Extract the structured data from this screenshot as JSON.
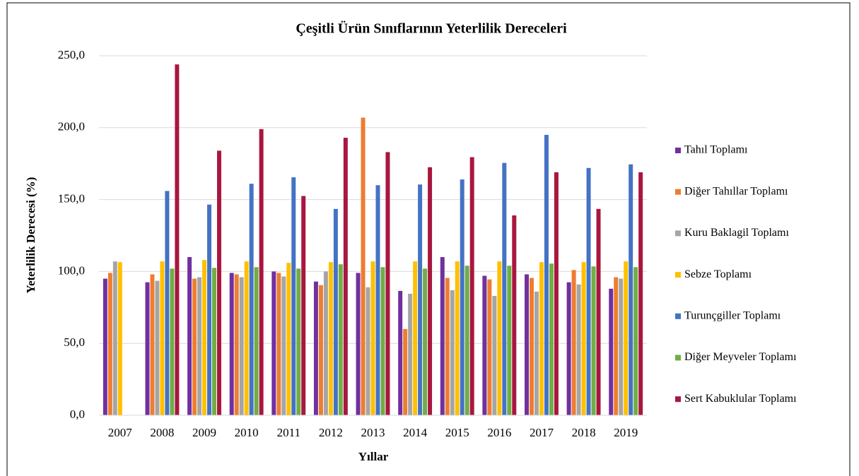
{
  "chart_data": {
    "type": "bar",
    "title": "Çeşitli Ürün Sınıflarının Yeterlilik Dereceleri",
    "xlabel": "Yıllar",
    "ylabel": "Yeterlilik Derecesi (%)",
    "categories": [
      "2007",
      "2008",
      "2009",
      "2010",
      "2011",
      "2012",
      "2013",
      "2014",
      "2015",
      "2016",
      "2017",
      "2018",
      "2019"
    ],
    "series": [
      {
        "name": "Tahıl Toplamı",
        "color": "#7030a0",
        "values": [
          95,
          92.5,
          110,
          99,
          100,
          93,
          99,
          86.5,
          110,
          97,
          98,
          92.5,
          88
        ]
      },
      {
        "name": "Diğer Tahıllar Toplamı",
        "color": "#ed7d31",
        "values": [
          99,
          98,
          95,
          98,
          99,
          90.5,
          207,
          60,
          95.5,
          94.5,
          95.5,
          101,
          96
        ]
      },
      {
        "name": "Kuru Baklagil Toplamı",
        "color": "#a5a5a5",
        "values": [
          107,
          93.5,
          96,
          96,
          96.5,
          100,
          89,
          84.5,
          87,
          83,
          86,
          91,
          95
        ]
      },
      {
        "name": "Sebze Toplamı",
        "color": "#ffc000",
        "values": [
          106.5,
          107,
          108,
          107,
          106,
          106.5,
          107,
          107,
          107,
          107,
          106.5,
          106.5,
          107
        ]
      },
      {
        "name": "Turunçgiller Toplamı",
        "color": "#4472c4",
        "values": [
          null,
          156,
          146.5,
          161,
          165.5,
          143.5,
          160,
          160.5,
          164,
          175.5,
          195,
          172,
          174.5
        ]
      },
      {
        "name": "Diğer Meyveler Toplamı",
        "color": "#70ad47",
        "values": [
          null,
          102,
          102.5,
          103,
          102,
          105,
          103,
          102,
          104,
          104,
          105.5,
          103.5,
          103
        ]
      },
      {
        "name": "Sert Kabuklular Toplamı",
        "color": "#a8173f",
        "values": [
          null,
          244,
          184,
          199,
          152.5,
          193,
          183,
          172.5,
          179.5,
          139,
          169,
          143.5,
          169
        ]
      }
    ],
    "ylim": [
      0,
      250
    ],
    "yticks": [
      {
        "value": 0,
        "label": "0,0"
      },
      {
        "value": 50,
        "label": "50,0"
      },
      {
        "value": 100,
        "label": "100,0"
      },
      {
        "value": 150,
        "label": "150,0"
      },
      {
        "value": 200,
        "label": "200,0"
      },
      {
        "value": 250,
        "label": "250,0"
      }
    ],
    "grid": true,
    "legend": "right"
  }
}
